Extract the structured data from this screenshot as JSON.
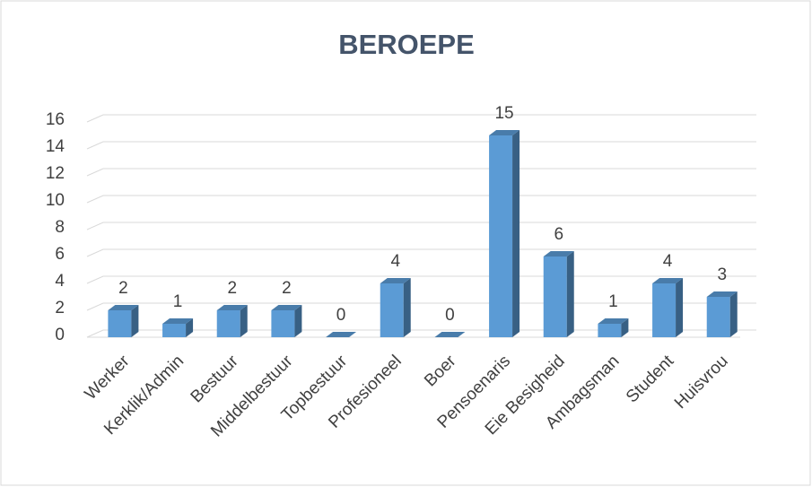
{
  "chart_data": {
    "type": "bar3d",
    "title": "BEROEPE",
    "categories": [
      "Werker",
      "Kerklik/Admin",
      "Bestuur",
      "Middelbestuur",
      "Topbestuur",
      "Profesioneel",
      "Boer",
      "Pensoenaris",
      "Eie Besigheid",
      "Ambagsman",
      "Student",
      "Huisvrou"
    ],
    "values": [
      2,
      1,
      2,
      2,
      0,
      4,
      0,
      15,
      6,
      1,
      4,
      3
    ],
    "color": "#5b9bd5",
    "ylim": [
      0,
      16
    ],
    "yticks": [
      0,
      2,
      4,
      6,
      8,
      10,
      12,
      14,
      16
    ],
    "grid": true
  }
}
